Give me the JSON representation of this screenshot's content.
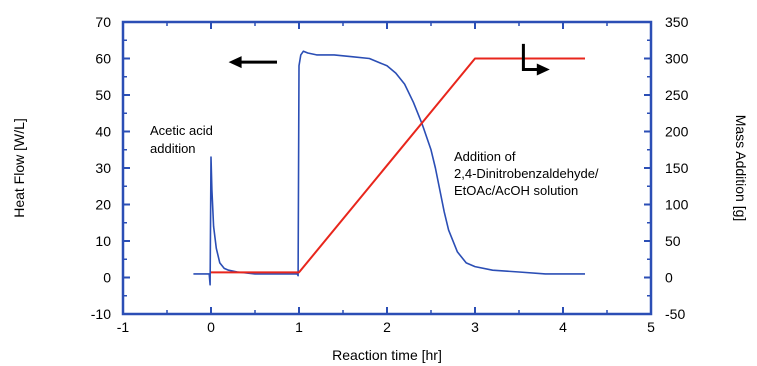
{
  "chart_data": {
    "type": "line",
    "xlabel": "Reaction time [hr]",
    "ylabel_left": "Heat Flow [W/L]",
    "ylabel_right": "Mass Addition [g]",
    "xlim": [
      -1,
      5
    ],
    "ylim_left": [
      -10,
      70
    ],
    "ylim_right": [
      -50,
      350
    ],
    "x_ticks": [
      -1,
      0,
      1,
      2,
      3,
      4,
      5
    ],
    "y_left_ticks": [
      -10,
      0,
      10,
      20,
      30,
      40,
      50,
      60,
      70
    ],
    "y_right_ticks": [
      -50,
      0,
      50,
      100,
      150,
      200,
      250,
      300,
      350
    ],
    "colors": {
      "heat_flow": "#2b4eb5",
      "mass_addition": "#e8261c",
      "axis": "#2b4eb5"
    },
    "series": [
      {
        "axis": "left",
        "x": [
          -0.2,
          -0.02,
          -0.01,
          0.0,
          0.01,
          0.03,
          0.06,
          0.1,
          0.15,
          0.2,
          0.3,
          0.5,
          0.7,
          0.9,
          0.98,
          0.99,
          1.0,
          1.02,
          1.05,
          1.1,
          1.2,
          1.4,
          1.6,
          1.8,
          2.0,
          2.1,
          2.2,
          2.3,
          2.4,
          2.5,
          2.55,
          2.6,
          2.65,
          2.7,
          2.8,
          2.9,
          3.0,
          3.2,
          3.5,
          3.8,
          4.25
        ],
        "y": [
          1,
          1,
          -2,
          33,
          24,
          14,
          8,
          4,
          2.5,
          2,
          1.5,
          1,
          1,
          1,
          1,
          0.5,
          58,
          61,
          62,
          61.5,
          61,
          61,
          60.5,
          60,
          58,
          56,
          53,
          48,
          42,
          35,
          30,
          24,
          18,
          13,
          7,
          4,
          3,
          2,
          1.5,
          1,
          1
        ]
      },
      {
        "axis": "right",
        "x": [
          0,
          1,
          3,
          4.25
        ],
        "y": [
          7,
          7,
          300,
          300
        ]
      }
    ],
    "annotations": [
      {
        "lines": [
          "Acetic acid",
          "addition"
        ]
      },
      {
        "lines": [
          "Addition of",
          "2,4-Dinitrobenzaldehyde/",
          "EtOAc/AcOH solution"
        ]
      }
    ],
    "indicators": [
      {
        "name": "left-axis-arrow",
        "direction": "left",
        "x_from": 0.75,
        "x_to": 0.2,
        "y": 59
      },
      {
        "name": "right-axis-arrow",
        "direction": "right",
        "x_corner": 3.55,
        "y_top": 64,
        "y_bottom": 57,
        "x_to": 3.85
      }
    ]
  }
}
